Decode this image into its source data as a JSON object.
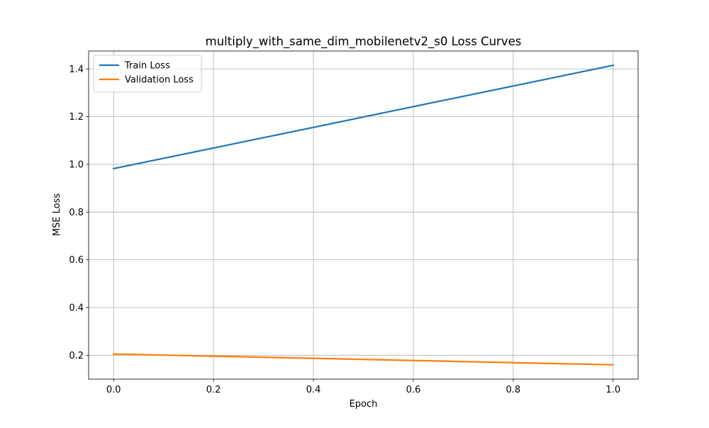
{
  "chart_data": {
    "type": "line",
    "title": "multiply_with_same_dim_mobilenetv2_s0 Loss Curves",
    "xlabel": "Epoch",
    "ylabel": "MSE Loss",
    "xlim": [
      -0.05,
      1.05
    ],
    "ylim": [
      0.1,
      1.475
    ],
    "xticks": [
      0.0,
      0.2,
      0.4,
      0.6,
      0.8,
      1.0
    ],
    "xtick_labels": [
      "0.0",
      "0.2",
      "0.4",
      "0.6",
      "0.8",
      "1.0"
    ],
    "yticks": [
      0.2,
      0.4,
      0.6,
      0.8,
      1.0,
      1.2,
      1.4
    ],
    "ytick_labels": [
      "0.2",
      "0.4",
      "0.6",
      "0.8",
      "1.0",
      "1.2",
      "1.4"
    ],
    "grid": true,
    "legend_position": "top-left",
    "series": [
      {
        "name": "Train Loss",
        "color": "#1f77b4",
        "x": [
          0,
          1
        ],
        "y": [
          0.982,
          1.415
        ]
      },
      {
        "name": "Validation Loss",
        "color": "#ff7f0e",
        "x": [
          0,
          1
        ],
        "y": [
          0.205,
          0.16
        ]
      }
    ]
  }
}
